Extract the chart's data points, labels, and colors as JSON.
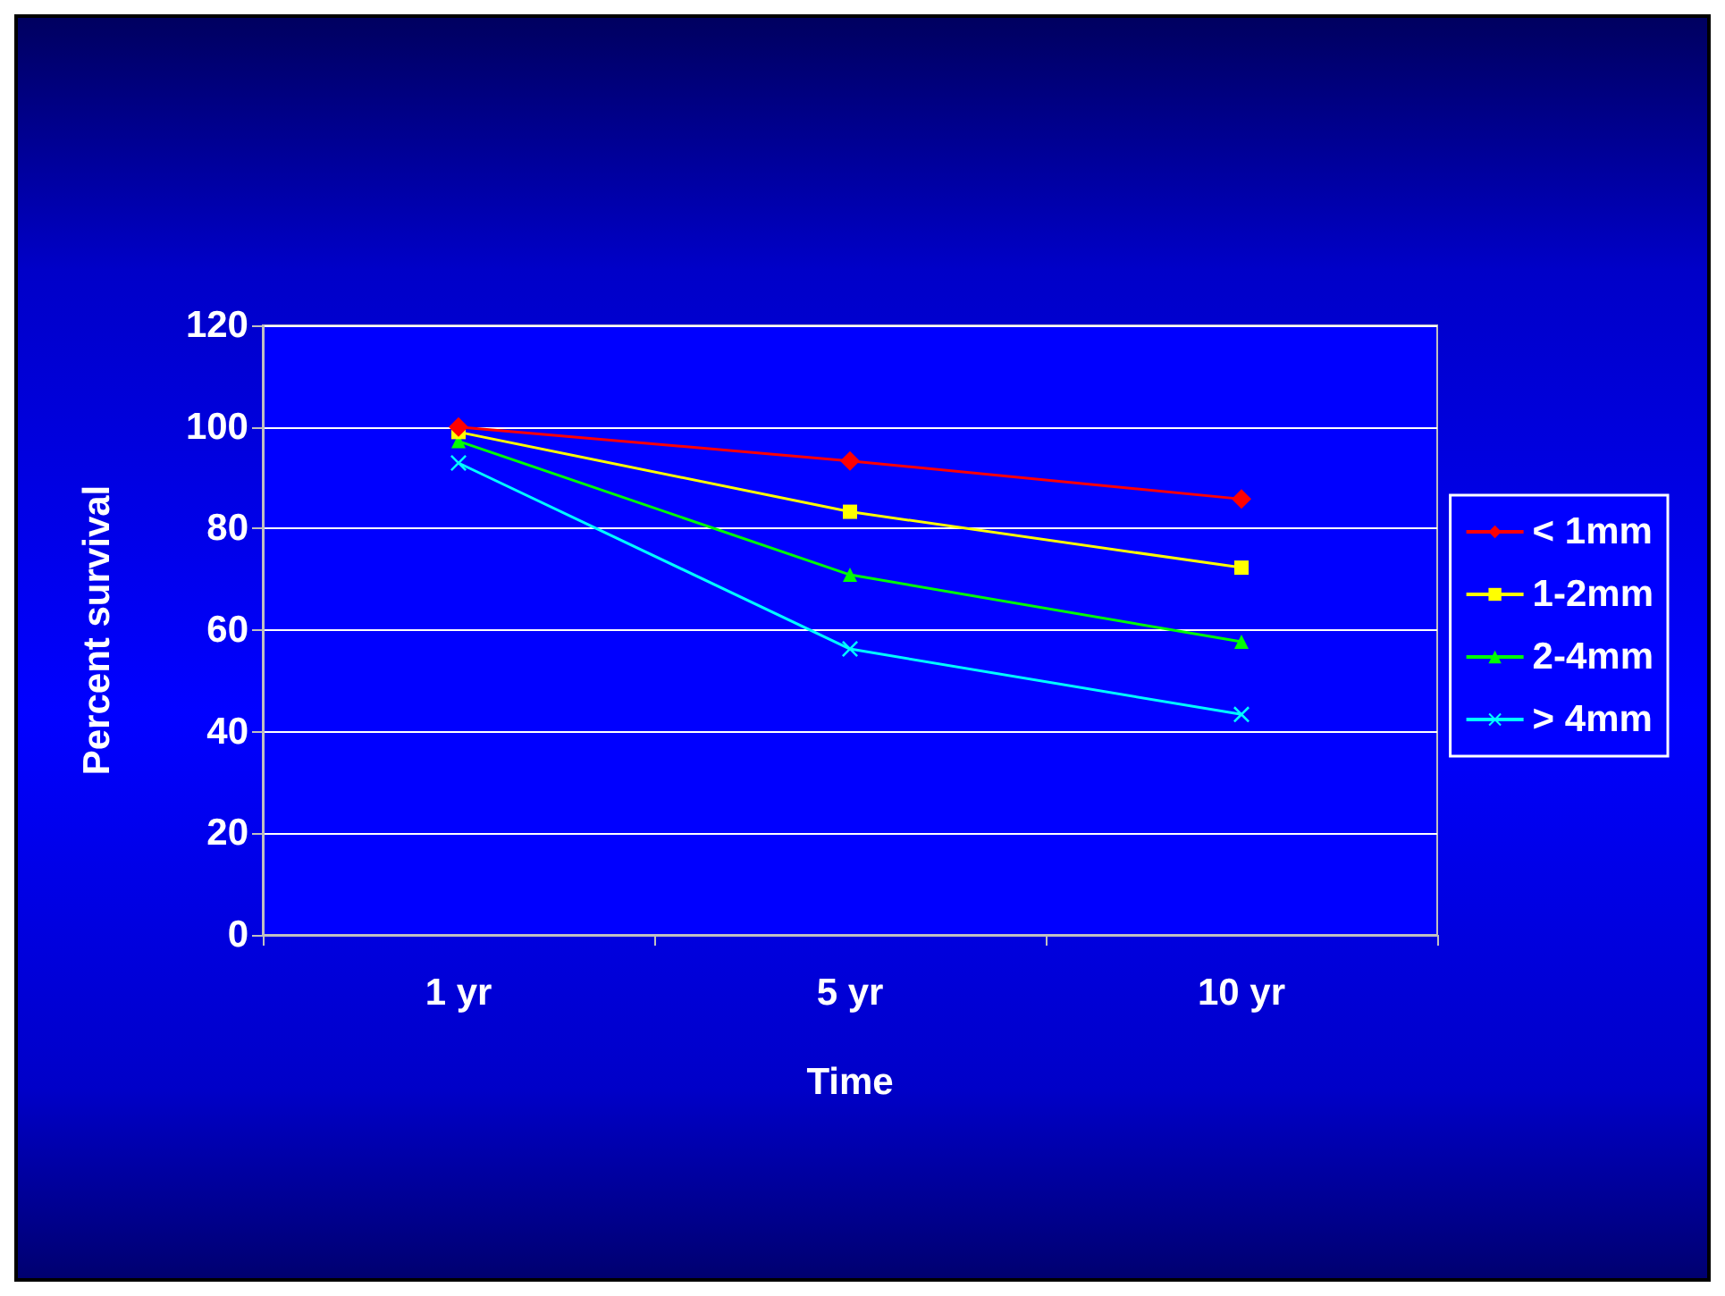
{
  "chart_data": {
    "type": "line",
    "xlabel": "Time",
    "ylabel": "Percent survival",
    "categories": [
      "1 yr",
      "5 yr",
      "10 yr"
    ],
    "series": [
      {
        "name": "< 1mm",
        "color": "#ff0000",
        "marker": "diamond",
        "values": [
          100,
          93.3,
          85.8
        ]
      },
      {
        "name": "1-2mm",
        "color": "#ffff00",
        "marker": "square",
        "values": [
          99,
          83.3,
          72.3
        ]
      },
      {
        "name": "2-4mm",
        "color": "#00ff00",
        "marker": "triangle",
        "values": [
          97.2,
          70.9,
          57.7
        ]
      },
      {
        "name": "> 4mm",
        "color": "#00ffff",
        "marker": "cross",
        "values": [
          92.9,
          56.3,
          43.4
        ]
      }
    ],
    "ylim": [
      0,
      120
    ],
    "yticks": [
      0,
      20,
      40,
      60,
      80,
      100,
      120
    ],
    "grid": "y",
    "legend": "right",
    "line_style": "solid"
  }
}
